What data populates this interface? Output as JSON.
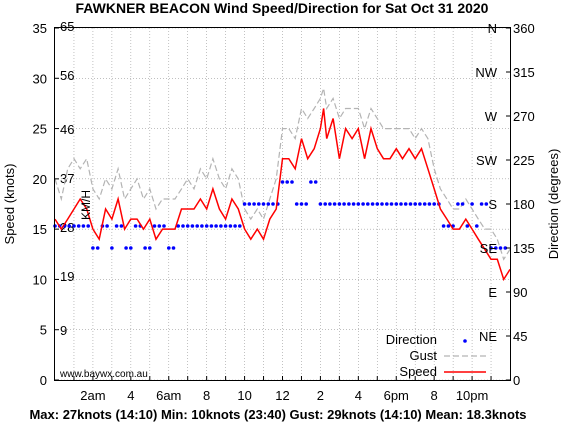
{
  "chart_data": {
    "type": "line",
    "title": "FAWKNER BEACON Wind Speed/Direction for Sat Oct 31 2020",
    "ylabel_left": "Speed (knots)",
    "ylabel_right": "Direction (degrees)",
    "kmh_label": "KM/H",
    "ylim": [
      0,
      35
    ],
    "xlim_hours": [
      0,
      24
    ],
    "left_ticks": [
      "0",
      "5",
      "10",
      "15",
      "20",
      "25",
      "30",
      "35"
    ],
    "kmh_ticks": [
      {
        "label": "9",
        "knots": 4.86
      },
      {
        "label": "19",
        "knots": 10.26
      },
      {
        "label": "28",
        "knots": 15.12
      },
      {
        "label": "37",
        "knots": 19.98
      },
      {
        "label": "46",
        "knots": 24.84
      },
      {
        "label": "56",
        "knots": 30.24
      },
      {
        "label": "65",
        "knots": 35.1
      }
    ],
    "right_ticks": [
      "0",
      "45",
      "90",
      "135",
      "180",
      "225",
      "270",
      "315",
      "360"
    ],
    "compass": [
      "NE",
      "E",
      "SE",
      "S",
      "SW",
      "W",
      "NW",
      "N"
    ],
    "x_ticks": [
      {
        "label": "2am",
        "hour": 2
      },
      {
        "label": "4",
        "hour": 4
      },
      {
        "label": "6am",
        "hour": 6
      },
      {
        "label": "8",
        "hour": 8
      },
      {
        "label": "10",
        "hour": 10
      },
      {
        "label": "12",
        "hour": 12
      },
      {
        "label": "2",
        "hour": 14
      },
      {
        "label": "4",
        "hour": 16
      },
      {
        "label": "6pm",
        "hour": 18
      },
      {
        "label": "8",
        "hour": 20
      },
      {
        "label": "10pm",
        "hour": 22
      }
    ],
    "series": [
      {
        "name": "Speed",
        "color": "#ff0000",
        "points": [
          [
            0,
            16
          ],
          [
            0.33,
            15
          ],
          [
            0.67,
            16
          ],
          [
            1,
            17
          ],
          [
            1.33,
            18
          ],
          [
            1.67,
            17
          ],
          [
            2,
            15
          ],
          [
            2.33,
            14
          ],
          [
            2.67,
            17
          ],
          [
            3,
            16
          ],
          [
            3.33,
            18
          ],
          [
            3.67,
            15
          ],
          [
            4,
            16
          ],
          [
            4.33,
            16
          ],
          [
            4.67,
            15
          ],
          [
            5,
            16
          ],
          [
            5.33,
            14
          ],
          [
            5.67,
            15
          ],
          [
            6,
            15
          ],
          [
            6.33,
            15
          ],
          [
            6.67,
            17
          ],
          [
            7,
            17
          ],
          [
            7.33,
            17
          ],
          [
            7.67,
            18
          ],
          [
            8,
            17
          ],
          [
            8.33,
            19
          ],
          [
            8.67,
            17
          ],
          [
            9,
            16
          ],
          [
            9.33,
            18
          ],
          [
            9.67,
            17
          ],
          [
            10,
            15
          ],
          [
            10.33,
            14
          ],
          [
            10.67,
            15
          ],
          [
            11,
            14
          ],
          [
            11.33,
            16
          ],
          [
            11.67,
            17
          ],
          [
            12,
            22
          ],
          [
            12.33,
            22
          ],
          [
            12.67,
            21
          ],
          [
            13,
            24
          ],
          [
            13.33,
            22
          ],
          [
            13.67,
            23
          ],
          [
            14,
            25
          ],
          [
            14.17,
            27
          ],
          [
            14.33,
            24
          ],
          [
            14.67,
            26
          ],
          [
            15,
            22
          ],
          [
            15.33,
            25
          ],
          [
            15.67,
            24
          ],
          [
            16,
            25
          ],
          [
            16.33,
            22
          ],
          [
            16.67,
            25
          ],
          [
            17,
            23
          ],
          [
            17.33,
            22
          ],
          [
            17.67,
            22
          ],
          [
            18,
            23
          ],
          [
            18.33,
            22
          ],
          [
            18.67,
            23
          ],
          [
            19,
            22
          ],
          [
            19.33,
            23
          ],
          [
            19.67,
            21
          ],
          [
            20,
            19
          ],
          [
            20.33,
            17
          ],
          [
            20.67,
            16
          ],
          [
            21,
            15
          ],
          [
            21.33,
            15
          ],
          [
            21.67,
            16
          ],
          [
            22,
            15
          ],
          [
            22.33,
            14
          ],
          [
            22.67,
            13
          ],
          [
            23,
            12
          ],
          [
            23.33,
            12
          ],
          [
            23.67,
            10
          ],
          [
            24,
            11
          ]
        ]
      },
      {
        "name": "Gust",
        "color": "#b4b4b4",
        "points": [
          [
            0,
            20
          ],
          [
            0.33,
            18
          ],
          [
            0.67,
            21
          ],
          [
            1,
            22
          ],
          [
            1.33,
            21
          ],
          [
            1.67,
            22
          ],
          [
            2,
            19
          ],
          [
            2.33,
            18
          ],
          [
            2.67,
            20
          ],
          [
            3,
            19
          ],
          [
            3.33,
            21
          ],
          [
            3.67,
            18
          ],
          [
            4,
            19
          ],
          [
            4.33,
            20
          ],
          [
            4.67,
            18
          ],
          [
            5,
            19
          ],
          [
            5.33,
            17
          ],
          [
            5.67,
            18
          ],
          [
            6,
            18
          ],
          [
            6.33,
            18
          ],
          [
            6.67,
            19
          ],
          [
            7,
            20
          ],
          [
            7.33,
            19
          ],
          [
            7.67,
            21
          ],
          [
            8,
            20
          ],
          [
            8.33,
            22
          ],
          [
            8.67,
            20
          ],
          [
            9,
            19
          ],
          [
            9.33,
            21
          ],
          [
            9.67,
            20
          ],
          [
            10,
            17
          ],
          [
            10.33,
            16
          ],
          [
            10.67,
            17
          ],
          [
            11,
            16
          ],
          [
            11.33,
            18
          ],
          [
            11.67,
            20
          ],
          [
            12,
            25
          ],
          [
            12.33,
            25
          ],
          [
            12.67,
            24
          ],
          [
            13,
            27
          ],
          [
            13.33,
            26
          ],
          [
            13.67,
            27
          ],
          [
            14,
            28
          ],
          [
            14.17,
            29
          ],
          [
            14.33,
            27
          ],
          [
            14.67,
            28
          ],
          [
            15,
            26
          ],
          [
            15.33,
            27
          ],
          [
            15.67,
            27
          ],
          [
            16,
            27
          ],
          [
            16.33,
            25
          ],
          [
            16.67,
            27
          ],
          [
            17,
            26
          ],
          [
            17.33,
            25
          ],
          [
            17.67,
            25
          ],
          [
            18,
            25
          ],
          [
            18.33,
            25
          ],
          [
            18.67,
            25
          ],
          [
            19,
            24
          ],
          [
            19.33,
            25
          ],
          [
            19.67,
            24
          ],
          [
            20,
            21
          ],
          [
            20.33,
            19
          ],
          [
            20.67,
            18
          ],
          [
            21,
            17
          ],
          [
            21.33,
            17
          ],
          [
            21.67,
            18
          ],
          [
            22,
            17
          ],
          [
            22.33,
            16
          ],
          [
            22.67,
            15
          ],
          [
            23,
            15
          ],
          [
            23.33,
            14
          ],
          [
            23.67,
            12
          ],
          [
            24,
            13
          ]
        ]
      },
      {
        "name": "Direction",
        "color": "#0000ff",
        "points": [
          [
            0,
            157.5
          ],
          [
            0.25,
            157.5
          ],
          [
            0.5,
            157.5
          ],
          [
            0.75,
            157.5
          ],
          [
            1,
            157.5
          ],
          [
            1.25,
            157.5
          ],
          [
            1.5,
            157.5
          ],
          [
            1.75,
            157.5
          ],
          [
            2,
            135
          ],
          [
            2.25,
            135
          ],
          [
            2.5,
            157.5
          ],
          [
            2.75,
            157.5
          ],
          [
            3,
            135
          ],
          [
            3.25,
            157.5
          ],
          [
            3.5,
            157.5
          ],
          [
            3.75,
            135
          ],
          [
            4,
            135
          ],
          [
            4.25,
            157.5
          ],
          [
            4.5,
            157.5
          ],
          [
            4.75,
            135
          ],
          [
            5,
            135
          ],
          [
            5.25,
            157.5
          ],
          [
            5.5,
            157.5
          ],
          [
            5.75,
            157.5
          ],
          [
            6,
            135
          ],
          [
            6.25,
            135
          ],
          [
            6.5,
            157.5
          ],
          [
            6.75,
            157.5
          ],
          [
            7,
            157.5
          ],
          [
            7.25,
            157.5
          ],
          [
            7.5,
            157.5
          ],
          [
            7.75,
            157.5
          ],
          [
            8,
            157.5
          ],
          [
            8.25,
            157.5
          ],
          [
            8.5,
            157.5
          ],
          [
            8.75,
            157.5
          ],
          [
            9,
            157.5
          ],
          [
            9.25,
            157.5
          ],
          [
            9.5,
            157.5
          ],
          [
            9.75,
            157.5
          ],
          [
            10,
            180
          ],
          [
            10.25,
            180
          ],
          [
            10.5,
            180
          ],
          [
            10.75,
            180
          ],
          [
            11,
            180
          ],
          [
            11.25,
            180
          ],
          [
            11.5,
            180
          ],
          [
            11.75,
            180
          ],
          [
            12,
            202.5
          ],
          [
            12.25,
            202.5
          ],
          [
            12.5,
            202.5
          ],
          [
            12.75,
            180
          ],
          [
            13,
            180
          ],
          [
            13.25,
            180
          ],
          [
            13.5,
            202.5
          ],
          [
            13.75,
            202.5
          ],
          [
            14,
            180
          ],
          [
            14.25,
            180
          ],
          [
            14.5,
            180
          ],
          [
            14.75,
            180
          ],
          [
            15,
            180
          ],
          [
            15.25,
            180
          ],
          [
            15.5,
            180
          ],
          [
            15.75,
            180
          ],
          [
            16,
            180
          ],
          [
            16.25,
            180
          ],
          [
            16.5,
            180
          ],
          [
            16.75,
            180
          ],
          [
            17,
            180
          ],
          [
            17.25,
            180
          ],
          [
            17.5,
            180
          ],
          [
            17.75,
            180
          ],
          [
            18,
            180
          ],
          [
            18.25,
            180
          ],
          [
            18.5,
            180
          ],
          [
            18.75,
            180
          ],
          [
            19,
            180
          ],
          [
            19.25,
            180
          ],
          [
            19.5,
            180
          ],
          [
            19.75,
            180
          ],
          [
            20,
            180
          ],
          [
            20.25,
            180
          ],
          [
            20.5,
            157.5
          ],
          [
            20.75,
            157.5
          ],
          [
            21,
            157.5
          ],
          [
            21.25,
            180
          ],
          [
            21.5,
            180
          ],
          [
            21.75,
            157.5
          ],
          [
            22,
            180
          ],
          [
            22.25,
            157.5
          ],
          [
            22.5,
            180
          ],
          [
            22.75,
            180
          ],
          [
            23,
            135
          ],
          [
            23.25,
            135
          ],
          [
            23.5,
            135
          ],
          [
            23.75,
            135
          ]
        ]
      }
    ],
    "legend": {
      "items": [
        {
          "label": "Direction"
        },
        {
          "label": "Gust"
        },
        {
          "label": "Speed"
        }
      ]
    },
    "watermark": "www.baywx.com.au",
    "summary": "Max: 27knots (14:10) Min: 10knots (23:40) Gust: 29knots (14:10) Mean: 18.3knots"
  }
}
